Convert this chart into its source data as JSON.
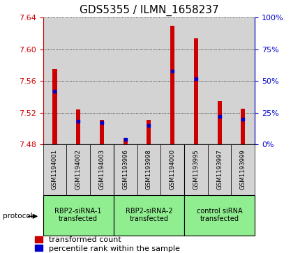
{
  "title": "GDS5355 / ILMN_1658237",
  "samples": [
    "GSM1194001",
    "GSM1194002",
    "GSM1194003",
    "GSM1193996",
    "GSM1193998",
    "GSM1194000",
    "GSM1193995",
    "GSM1193997",
    "GSM1193999"
  ],
  "red_values": [
    7.575,
    7.524,
    7.511,
    7.488,
    7.511,
    7.63,
    7.614,
    7.535,
    7.525
  ],
  "blue_percentiles": [
    42,
    18,
    17,
    4,
    15,
    58,
    52,
    22,
    20
  ],
  "ylim_left": [
    7.48,
    7.64
  ],
  "ylim_right": [
    0,
    100
  ],
  "yticks_left": [
    7.48,
    7.52,
    7.56,
    7.6,
    7.64
  ],
  "yticks_right": [
    0,
    25,
    50,
    75,
    100
  ],
  "groups": [
    {
      "label": "RBP2-siRNA-1\ntransfected",
      "start": 0,
      "end": 3,
      "color": "#90ee90"
    },
    {
      "label": "RBP2-siRNA-2\ntransfected",
      "start": 3,
      "end": 6,
      "color": "#90ee90"
    },
    {
      "label": "control siRNA\ntransfected",
      "start": 6,
      "end": 9,
      "color": "#90ee90"
    }
  ],
  "bar_color_red": "#cc0000",
  "bar_color_blue": "#0000cc",
  "bar_width": 0.18,
  "bg_color_sample": "#d3d3d3",
  "left_tick_color": "#cc0000",
  "right_tick_color": "#0000cc",
  "title_fontsize": 11,
  "tick_fontsize": 8,
  "legend_fontsize": 8,
  "protocol_label": "protocol",
  "baseline": 7.48
}
